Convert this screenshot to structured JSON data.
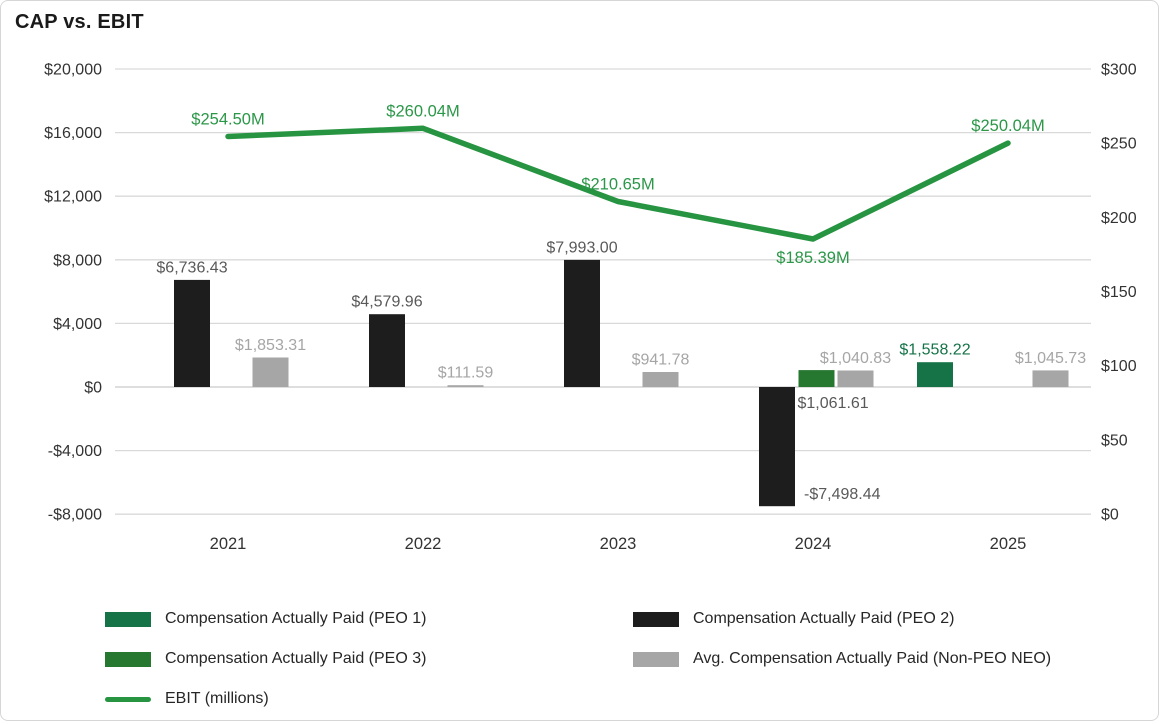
{
  "chart_data": {
    "type": "combo-bar-line",
    "title": "CAP vs. EBIT",
    "categories": [
      "2021",
      "2022",
      "2023",
      "2024",
      "2025"
    ],
    "left_axis": {
      "labels": [
        "$20,000",
        "$16,000",
        "$12,000",
        "$8,000",
        "$4,000",
        "$0",
        "-$4,000",
        "-$8,000"
      ],
      "values": [
        20000,
        16000,
        12000,
        8000,
        4000,
        0,
        -4000,
        -8000
      ],
      "min": -8000,
      "max": 20000,
      "step": 4000
    },
    "right_axis": {
      "labels": [
        "$300",
        "$250",
        "$200",
        "$150",
        "$100",
        "$50",
        "$0"
      ],
      "values": [
        300,
        250,
        200,
        150,
        100,
        50,
        0
      ],
      "min": 0,
      "max": 300,
      "step": 50
    },
    "grid": "horizontal-light-gray",
    "bar_series": [
      {
        "name": "Compensation Actually Paid (PEO 1)",
        "color": "#157347",
        "label_color": "#157347",
        "values": [
          null,
          null,
          null,
          null,
          1558.22
        ],
        "labels": [
          null,
          null,
          null,
          null,
          "$1,558.22"
        ],
        "placements": [
          null,
          null,
          null,
          null,
          "above"
        ]
      },
      {
        "name": "Compensation Actually Paid (PEO 2)",
        "color": "#1d1d1d",
        "label_color": "#595959",
        "values": [
          6736.43,
          4579.96,
          7993.0,
          -7498.44,
          null
        ],
        "labels": [
          "$6,736.43",
          "$4,579.96",
          "$7,993.00",
          "-$7,498.44",
          null
        ],
        "placements": [
          "above",
          "above",
          "above",
          "neg-right",
          null
        ]
      },
      {
        "name": "Compensation Actually Paid (PEO 3)",
        "color": "#26772F",
        "label_color": "#595959",
        "values": [
          null,
          null,
          null,
          1061.61,
          null
        ],
        "labels": [
          null,
          null,
          null,
          "$1,061.61",
          null
        ],
        "placements": [
          null,
          null,
          null,
          "axis-below",
          null
        ]
      },
      {
        "name": "Avg. Compensation Actually Paid (Non-PEO NEO)",
        "color": "#a6a6a6",
        "label_color": "#a6a6a6",
        "values": [
          1853.31,
          111.59,
          941.78,
          1040.83,
          1045.73
        ],
        "labels": [
          "$1,853.31",
          "$111.59",
          "$941.78",
          "$1,040.83",
          "$1,045.73"
        ],
        "placements": [
          "above",
          "above",
          "above",
          "above",
          "above"
        ]
      }
    ],
    "line_series": {
      "name": "EBIT (millions)",
      "color": "#279442",
      "label_color": "#2b9748",
      "values": [
        254.5,
        260.04,
        210.65,
        185.39,
        250.04
      ],
      "labels": [
        "$254.50M",
        "$260.04M",
        "$210.65M",
        "$185.39M",
        "$250.04M"
      ],
      "label_positions": [
        "above",
        "above",
        "above",
        "below",
        "above"
      ]
    },
    "legend_position": "bottom-two-columns"
  }
}
